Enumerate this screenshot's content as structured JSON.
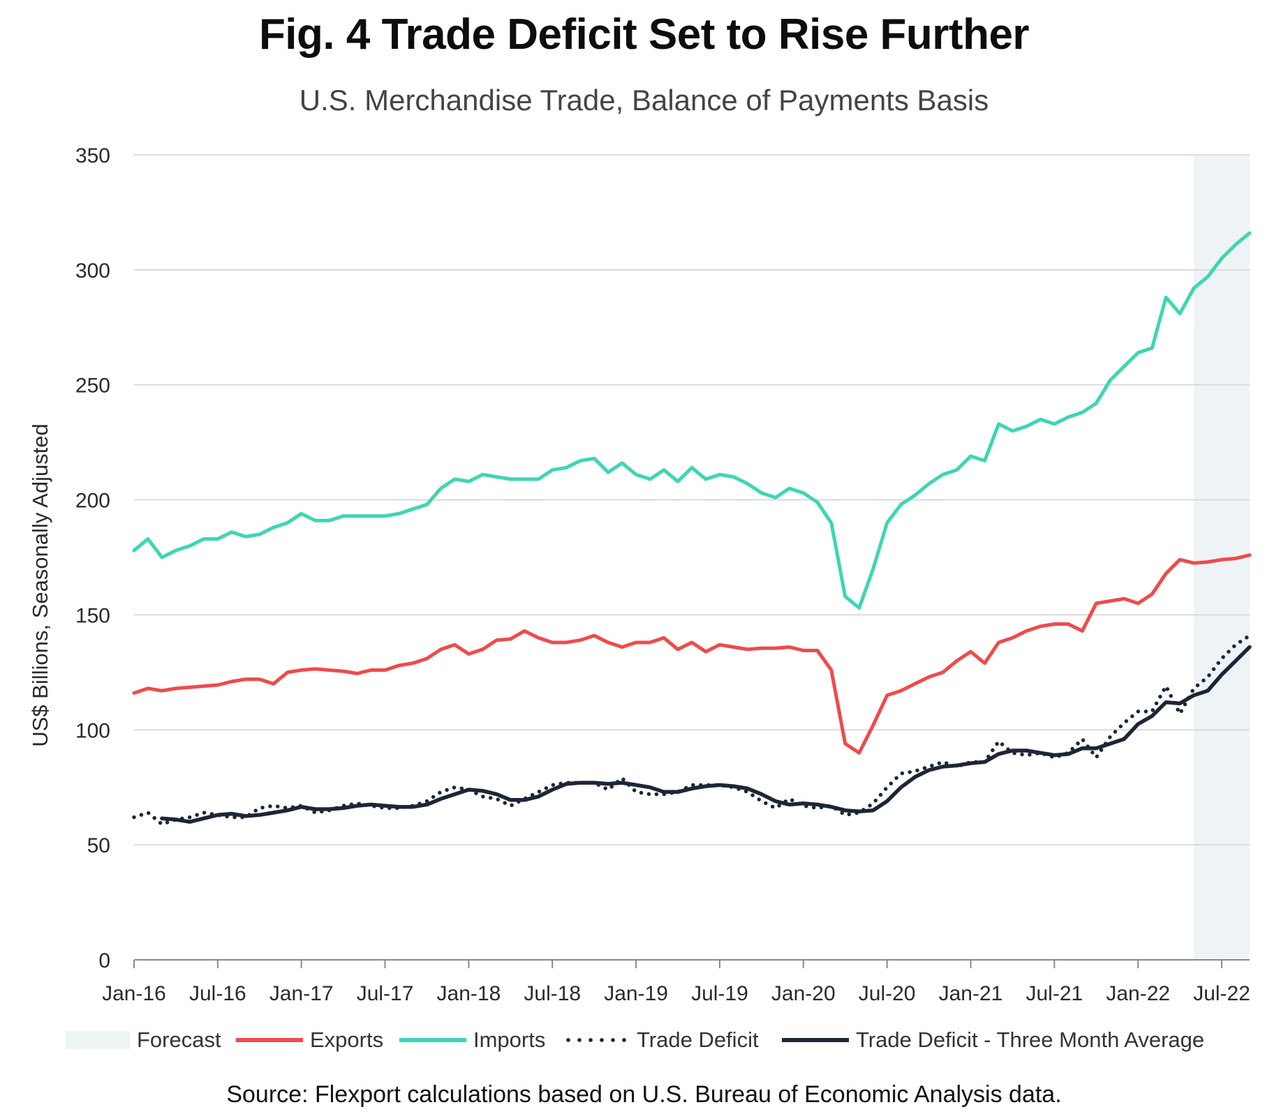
{
  "chart_data": {
    "type": "line",
    "title": "Fig. 4 Trade Deficit Set to Rise Further",
    "subtitle": "U.S. Merchandise Trade, Balance of Payments Basis",
    "ylabel": "US$ Billions, Seasonally Adjusted",
    "xlabel": "",
    "ylim": [
      0,
      350
    ],
    "yticks": [
      0,
      50,
      100,
      150,
      200,
      250,
      300,
      350
    ],
    "xticks": [
      "Jan-16",
      "Jul-16",
      "Jan-17",
      "Jul-17",
      "Jan-18",
      "Jul-18",
      "Jan-19",
      "Jul-19",
      "Jan-20",
      "Jul-20",
      "Jan-21",
      "Jul-21",
      "Jan-22",
      "Jul-22"
    ],
    "x_start": "Jan-16",
    "x_months": 81,
    "forecast_start_index": 76,
    "grid": true,
    "legend_position": "bottom",
    "colors": {
      "forecast": "#eef3f6",
      "exports": "#f04a4a",
      "imports": "#3dd6b3",
      "trade_deficit": "#1d2636",
      "three_month_avg": "#1d2636",
      "grid": "#d4d4d4",
      "axis": "#888888"
    },
    "series": [
      {
        "name": "Exports",
        "style": "solid",
        "values": [
          116,
          118,
          117,
          118,
          118.5,
          119,
          119.5,
          121,
          122,
          122,
          120,
          125,
          126,
          126.5,
          126,
          125.5,
          124.5,
          126,
          126,
          128,
          129,
          131,
          135,
          137,
          133,
          135,
          139,
          139.5,
          143,
          140,
          138,
          138,
          139,
          141,
          138,
          136,
          138,
          138,
          140,
          135,
          138,
          134,
          137,
          136,
          135,
          135.5,
          135.5,
          136,
          134.5,
          134.5,
          126,
          94,
          90,
          102,
          115,
          117,
          120,
          123,
          125,
          130,
          134,
          129,
          138,
          140,
          143,
          145,
          146,
          146,
          143,
          155,
          156,
          157,
          155,
          159,
          168,
          174,
          172.5,
          173,
          174,
          174.5,
          176
        ]
      },
      {
        "name": "Imports",
        "style": "solid",
        "values": [
          178,
          183,
          175,
          178,
          180,
          183,
          183,
          186,
          184,
          185,
          188,
          190,
          194,
          191,
          191,
          193,
          193,
          193,
          193,
          194,
          196,
          198,
          205,
          209,
          208,
          211,
          210,
          209,
          209,
          209,
          213,
          214,
          217,
          218,
          212,
          216,
          211,
          209,
          213,
          208,
          214,
          209,
          211,
          210,
          207,
          203,
          201,
          205,
          203,
          199,
          190,
          158,
          153,
          170,
          190,
          198,
          202,
          207,
          211,
          213,
          219,
          217,
          233,
          230,
          232,
          235,
          233,
          236,
          238,
          242,
          252,
          258,
          264,
          266,
          288,
          281,
          292,
          297,
          305,
          311,
          316
        ]
      },
      {
        "name": "Trade Deficit",
        "style": "dotted",
        "values": [
          62,
          64,
          59,
          61,
          62,
          64,
          63,
          62,
          62,
          66,
          67,
          66,
          67,
          64,
          65,
          67,
          68,
          67,
          66,
          66,
          67,
          69,
          73,
          75,
          74,
          71,
          70,
          67,
          70,
          73,
          76,
          77,
          77,
          77,
          74,
          79,
          73,
          72,
          72,
          73,
          76,
          76,
          76,
          75,
          73,
          69,
          66,
          70,
          67,
          66,
          67,
          63,
          64,
          68,
          75,
          81,
          82,
          84,
          86,
          84,
          86,
          86,
          95,
          90,
          89,
          90,
          88,
          90,
          96,
          88,
          97,
          103,
          108,
          108,
          119,
          107,
          118,
          123,
          131,
          137,
          141
        ]
      },
      {
        "name": "Trade Deficit - Three Month Average",
        "style": "solid-thick",
        "values": [
          null,
          null,
          61.5,
          61,
          60,
          61.5,
          63,
          63.5,
          62.5,
          63,
          64,
          65,
          66.5,
          65.5,
          65.5,
          66,
          67,
          67.5,
          67,
          66.5,
          66.5,
          67.5,
          70,
          72,
          74,
          73.5,
          72,
          69.5,
          69.5,
          71,
          74,
          76.5,
          77,
          77,
          76.5,
          77,
          76,
          75,
          73,
          73,
          74.5,
          75.5,
          76,
          75.5,
          74.5,
          72,
          69,
          67.5,
          68,
          67.5,
          66.5,
          65,
          64.5,
          65,
          69,
          75,
          79.5,
          82.5,
          84,
          84.5,
          85.5,
          86,
          89.5,
          91,
          91,
          90,
          89,
          89.5,
          92,
          92,
          94,
          96,
          102.5,
          106,
          112,
          111.5,
          115,
          117,
          124,
          130,
          136
        ]
      }
    ],
    "legend": [
      "Forecast",
      "Exports",
      "Imports",
      "Trade Deficit",
      "Trade Deficit - Three Month Average"
    ],
    "source": "Source: Flexport calculations based on U.S. Bureau of Economic Analysis data."
  }
}
